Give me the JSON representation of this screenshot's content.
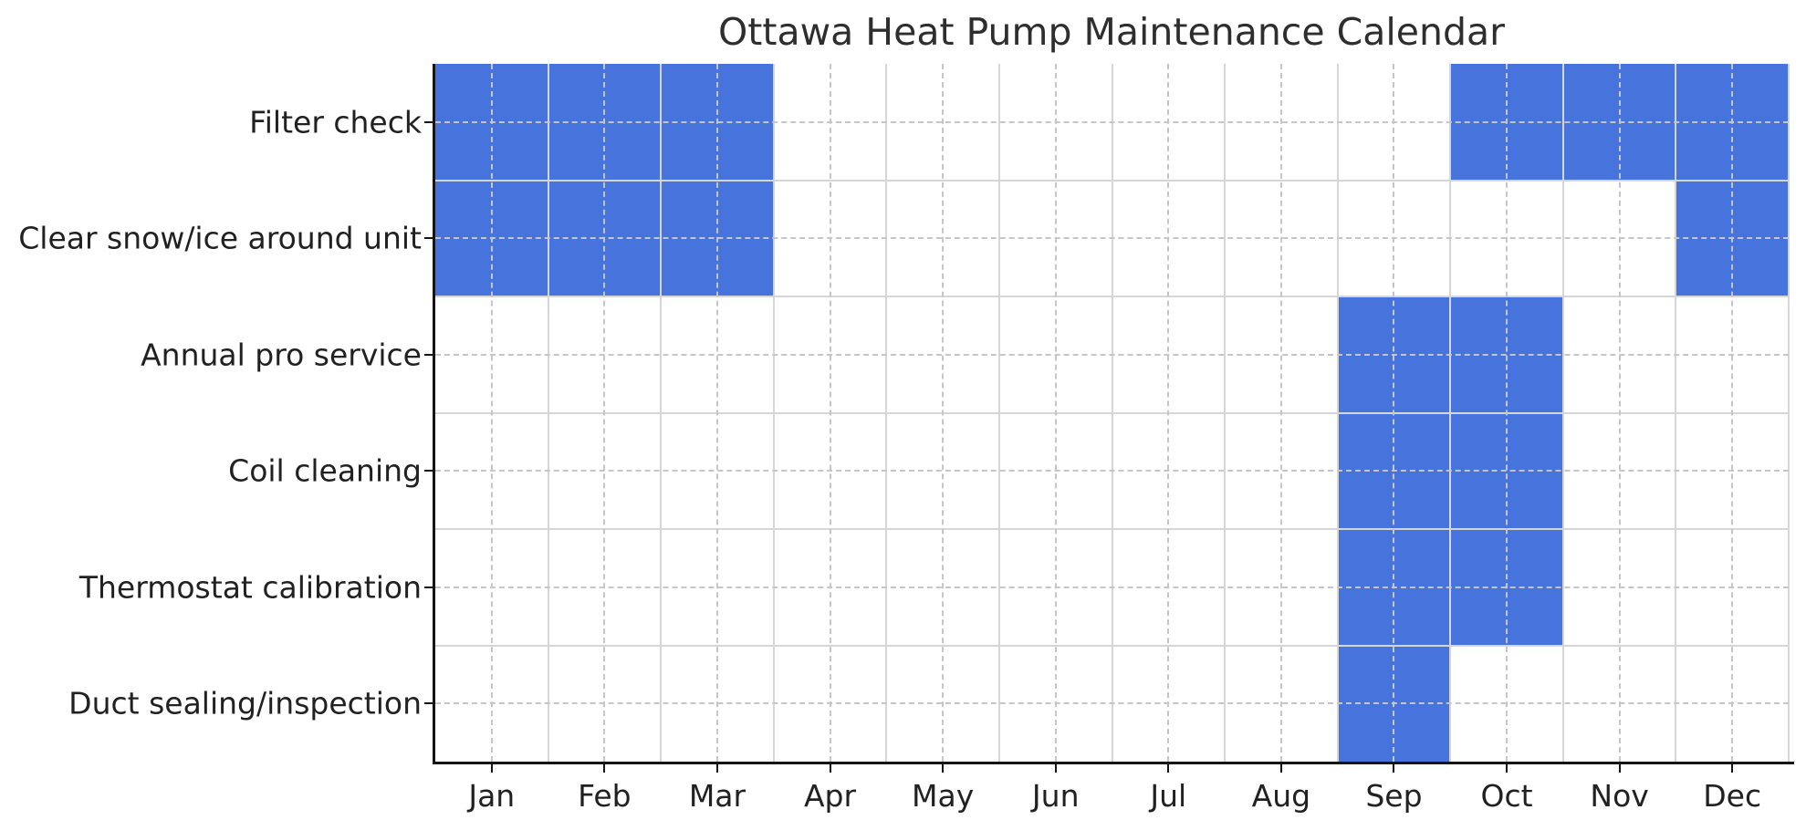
{
  "title": "Ottawa Heat Pump Maintenance Calendar",
  "colors": {
    "cell_fill": "#4773dc",
    "grid_solid": "#d4d6d9",
    "grid_dashed": "#c6c6c6",
    "spine": "#151515",
    "text": "#212121",
    "title_text": "#2e2e2e",
    "background": "#ffffff"
  },
  "chart_data": {
    "type": "heatmap",
    "title": "Ottawa Heat Pump Maintenance Calendar",
    "x_categories": [
      "Jan",
      "Feb",
      "Mar",
      "Apr",
      "May",
      "Jun",
      "Jul",
      "Aug",
      "Sep",
      "Oct",
      "Nov",
      "Dec"
    ],
    "y_categories": [
      "Filter check",
      "Clear snow/ice around unit",
      "Annual pro service",
      "Coil cleaning",
      "Thermostat calibration",
      "Duct sealing/inspection"
    ],
    "series": [
      {
        "name": "Filter check",
        "values": [
          1,
          1,
          1,
          0,
          0,
          0,
          0,
          0,
          0,
          1,
          1,
          1
        ],
        "scheduled_months": [
          "Jan",
          "Feb",
          "Mar",
          "Oct",
          "Nov",
          "Dec"
        ]
      },
      {
        "name": "Clear snow/ice around unit",
        "values": [
          1,
          1,
          1,
          0,
          0,
          0,
          0,
          0,
          0,
          0,
          0,
          1
        ],
        "scheduled_months": [
          "Jan",
          "Feb",
          "Mar",
          "Dec"
        ]
      },
      {
        "name": "Annual pro service",
        "values": [
          0,
          0,
          0,
          0,
          0,
          0,
          0,
          0,
          1,
          1,
          0,
          0
        ],
        "scheduled_months": [
          "Sep",
          "Oct"
        ]
      },
      {
        "name": "Coil cleaning",
        "values": [
          0,
          0,
          0,
          0,
          0,
          0,
          0,
          0,
          1,
          1,
          0,
          0
        ],
        "scheduled_months": [
          "Sep",
          "Oct"
        ]
      },
      {
        "name": "Thermostat calibration",
        "values": [
          0,
          0,
          0,
          0,
          0,
          0,
          0,
          0,
          1,
          1,
          0,
          0
        ],
        "scheduled_months": [
          "Sep",
          "Oct"
        ]
      },
      {
        "name": "Duct sealing/inspection",
        "values": [
          0,
          0,
          0,
          0,
          0,
          0,
          0,
          0,
          1,
          0,
          0,
          0
        ],
        "scheduled_months": [
          "Sep"
        ]
      }
    ],
    "value_meaning": "1 = maintenance scheduled that month, 0 = not scheduled",
    "legend": "none",
    "grid": "dashed gridlines at month/row tick centers, solid light lines at cell boundaries",
    "axes": {
      "x_ticks_at": "month centers",
      "y_ticks_at": "row centers",
      "spines_visible": [
        "left",
        "bottom"
      ]
    }
  }
}
